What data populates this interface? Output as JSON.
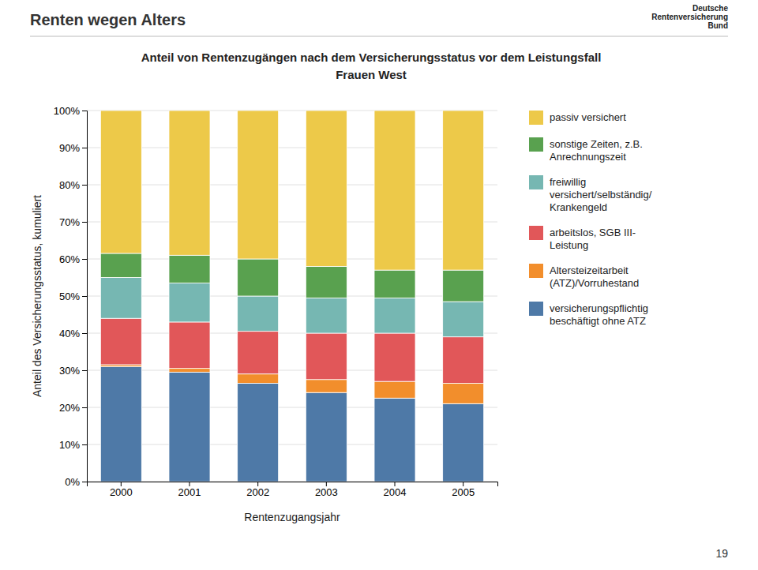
{
  "chart_data": {
    "type": "bar",
    "stacked": true,
    "title": "Anteil von Rentenzugängen nach dem Versicherungsstatus vor dem Leistungsfall",
    "subtitle": "Frauen West",
    "x_label": "Rentenzugangsjahr",
    "y_label": "Anteil des Versicherungsstatus, kumuliert",
    "annotations": [
      "Renten wegen Alters",
      "19",
      "Deutsche",
      "Rentenversicherung",
      "Bund"
    ],
    "categories": [
      "2000",
      "2001",
      "2002",
      "2003",
      "2004",
      "2005"
    ],
    "series": [
      {
        "name": "versicherungspflichtig\nbeschäftigt ohne ATZ",
        "values": [
          31.0,
          29.5,
          26.5,
          24.0,
          22.5,
          21.0
        ]
      },
      {
        "name": "Altersteizeitarbeit\n(ATZ)/Vorruhestand",
        "values": [
          0.5,
          1.0,
          2.5,
          3.5,
          4.5,
          5.5
        ]
      },
      {
        "name": "arbeitslos, SGB III-\nLeistung",
        "values": [
          12.5,
          12.5,
          11.5,
          12.5,
          13.0,
          12.5
        ]
      },
      {
        "name": "freiwillig\nversichert/selbständig/\nKrankengeld",
        "values": [
          11.0,
          10.5,
          9.5,
          9.5,
          9.5,
          9.5
        ]
      },
      {
        "name": "sonstige Zeiten, z.B.\nAnrechnungszeit",
        "values": [
          6.5,
          7.5,
          10.0,
          8.5,
          7.5,
          8.5
        ]
      },
      {
        "name": "passiv versichert",
        "values": [
          38.5,
          39.0,
          40.0,
          42.0,
          43.0,
          43.0
        ]
      }
    ],
    "ylim": [
      0,
      100
    ],
    "yticks": [
      {
        "value": 0,
        "label": "0%"
      },
      {
        "value": 10,
        "label": "10%"
      },
      {
        "value": 20,
        "label": "20%"
      },
      {
        "value": 30,
        "label": "30%"
      },
      {
        "value": 40,
        "label": "40%"
      },
      {
        "value": 50,
        "label": "50%"
      },
      {
        "value": 60,
        "label": "60%"
      },
      {
        "value": 70,
        "label": "70%"
      },
      {
        "value": 80,
        "label": "80%"
      },
      {
        "value": 90,
        "label": "90%"
      },
      {
        "value": 100,
        "label": "100%"
      }
    ],
    "grid": true,
    "legend": "right"
  }
}
